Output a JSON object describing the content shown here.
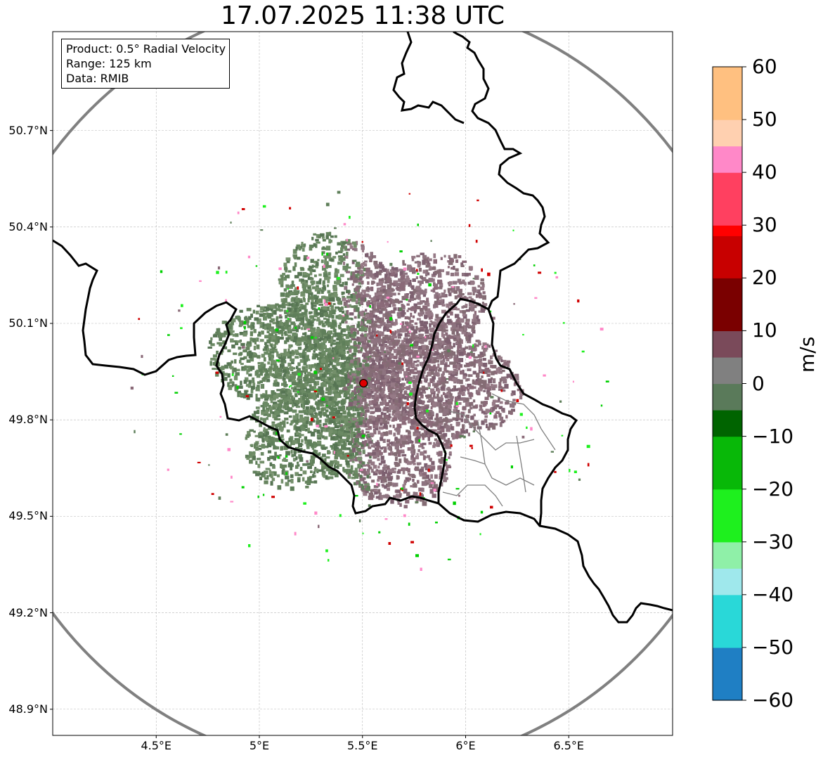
{
  "title": "17.07.2025 11:38 UTC",
  "info": {
    "product": "Product: 0.5° Radial Velocity",
    "range": "Range: 125 km",
    "data": "Data: RMIB"
  },
  "map": {
    "lon_range": [
      4.0,
      7.0
    ],
    "lat_range": [
      48.8,
      51.0
    ],
    "radar_site": {
      "lon": 5.505,
      "lat": 49.914
    },
    "range_ring_km": 125,
    "y_ticks": [
      "50.7°N",
      "50.4°N",
      "50.1°N",
      "49.8°N",
      "49.5°N",
      "49.2°N",
      "48.9°N"
    ],
    "y_tick_values": [
      50.7,
      50.4,
      50.1,
      49.8,
      49.5,
      49.2,
      48.9
    ],
    "x_ticks": [
      "4.5°E",
      "5°E",
      "5.5°E",
      "6°E",
      "6.5°E"
    ],
    "x_tick_values": [
      4.5,
      5.0,
      5.5,
      6.0,
      6.5
    ]
  },
  "colorbar": {
    "unit": "m/s",
    "min": -60,
    "max": 60,
    "ticks": [
      "60",
      "50",
      "40",
      "30",
      "20",
      "10",
      "0",
      "−10",
      "−20",
      "−30",
      "−40",
      "−50",
      "−60"
    ],
    "colors": {
      "-60": "#1f7fc4",
      "-50": "#29d8d8",
      "-40": "#9fe8ec",
      "-35": "#8ff0a8",
      "-30": "#1ef01e",
      "-20": "#08b808",
      "-10": "#006400",
      "-5": "#5a7a5a",
      "0": "#808080",
      "5": "#7a4a5a",
      "10": "#7a0000",
      "20": "#c80000",
      "28": "#ff0000",
      "30": "#ff4060",
      "40": "#ff88c8",
      "45": "#ffd0b0",
      "50": "#ffc080",
      "60": "#ff9850"
    }
  },
  "colors": {
    "approach": "#5f7f5a",
    "recede": "#8a6a78",
    "border": "#000000",
    "range_ring": "#808080",
    "site_marker": "#e00000"
  }
}
